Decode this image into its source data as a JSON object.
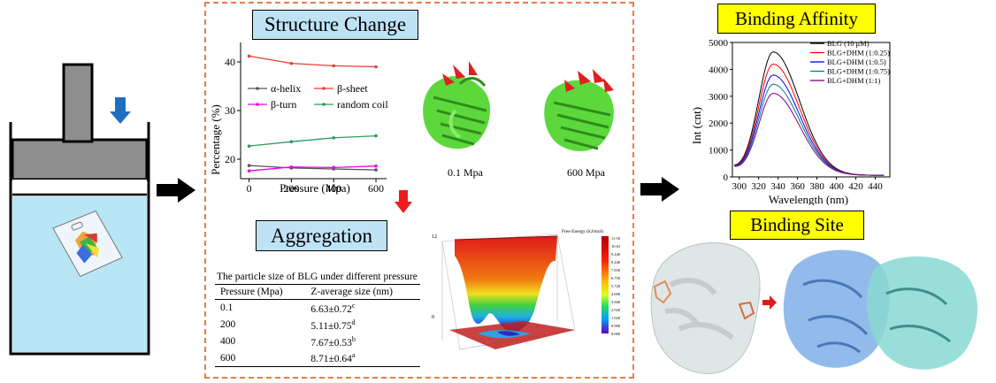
{
  "titles": {
    "structure_change": "Structure Change",
    "aggregation": "Aggregation",
    "binding_affinity": "Binding Affinity",
    "binding_site": "Binding Site"
  },
  "structure_labels": {
    "low": "0.1 Mpa",
    "high": "600 Mpa"
  },
  "aggregation_table": {
    "caption": "The particle size of BLG under different pressure",
    "headers": [
      "Pressure (Mpa)",
      "Z-average size (nm)"
    ],
    "rows": [
      {
        "pressure": "0.1",
        "size": "6.63±0.72",
        "sup": "c"
      },
      {
        "pressure": "200",
        "size": "5.11±0.75",
        "sup": "d"
      },
      {
        "pressure": "400",
        "size": "7.67±0.53",
        "sup": "b"
      },
      {
        "pressure": "600",
        "size": "8.71±0.64",
        "sup": "a"
      }
    ]
  },
  "energy_legend": {
    "title": "Free Energy (kJ/mol)",
    "values": [
      "11.50",
      "10.63",
      "9.440",
      "8.440",
      "7.830",
      "6.750",
      "5.720",
      "4.690",
      "3.840",
      "2.920",
      "1.920",
      "0.900",
      "0.000"
    ]
  },
  "chart_data": [
    {
      "type": "line",
      "x": [
        0,
        200,
        400,
        600
      ],
      "xlabel": "Pressure (Mpa)",
      "ylabel": "Percentage (%)",
      "xticks": [
        "0",
        "200",
        "400",
        "600"
      ],
      "yticks": [
        "20",
        "30",
        "40"
      ],
      "xlim": [
        -40,
        650
      ],
      "ylim": [
        16,
        44
      ],
      "series": [
        {
          "name": "α-helix",
          "values": [
            18.7,
            18.2,
            18.0,
            17.8
          ],
          "color": "#555555"
        },
        {
          "name": "β-sheet",
          "values": [
            41.2,
            39.7,
            39.2,
            39.0
          ],
          "color": "#ee3b3b"
        },
        {
          "name": "β-turn",
          "values": [
            17.6,
            18.4,
            18.3,
            18.6
          ],
          "color": "#ee00ee"
        },
        {
          "name": "random coil",
          "values": [
            22.7,
            23.6,
            24.4,
            24.8
          ],
          "color": "#2e9b5e"
        }
      ]
    },
    {
      "type": "line",
      "xlabel": "Wavelength (nm)",
      "ylabel": "Int  (cnt)",
      "xticks": [
        "300",
        "320",
        "340",
        "360",
        "380",
        "400",
        "420",
        "440"
      ],
      "yticks": [
        "0",
        "1000",
        "2000",
        "3000",
        "4000",
        "5000"
      ],
      "xlim": [
        293,
        455
      ],
      "ylim": [
        0,
        5000
      ],
      "peak_wavelength": 335,
      "series": [
        {
          "name": "BLG (10 μM)",
          "peak": 4580,
          "color": "#000000"
        },
        {
          "name": "BLG+DHM (1:0.25)",
          "peak": 4130,
          "color": "#ff0000"
        },
        {
          "name": "BLG+DHM (1:0.5)",
          "peak": 3720,
          "color": "#0000ff"
        },
        {
          "name": "BLG+DHM (1:0.75)",
          "peak": 3380,
          "color": "#008080"
        },
        {
          "name": "BLG+DHM (1:1)",
          "peak": 3040,
          "color": "#800080"
        }
      ]
    }
  ]
}
